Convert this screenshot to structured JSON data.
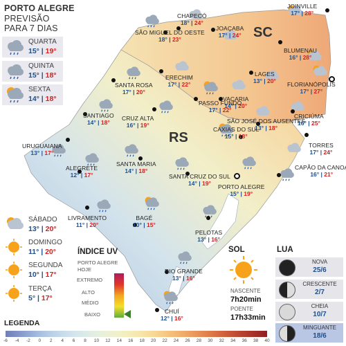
{
  "header": {
    "city": "PORTO ALEGRE",
    "line2": "PREVISÃO",
    "line3": "PARA 7 DIAS"
  },
  "forecast": [
    {
      "day": "QUARTA",
      "min": "15°",
      "max": "19°",
      "icon": "rain-cloud-icon"
    },
    {
      "day": "QUINTA",
      "min": "15°",
      "max": "18°",
      "icon": "rain-cloud-icon"
    },
    {
      "day": "SEXTA",
      "min": "14°",
      "max": "18°",
      "icon": "sun-rain-icon"
    },
    {
      "day": "SÁBADO",
      "min": "13°",
      "max": "20°",
      "icon": "sun-cloud-icon"
    },
    {
      "day": "DOMINGO",
      "min": "11°",
      "max": "20°",
      "icon": "sun-icon"
    },
    {
      "day": "SEGUNDA",
      "min": "10°",
      "max": "17°",
      "icon": "sun-icon"
    },
    {
      "day": "TERÇA",
      "min": "5°",
      "max": "17°",
      "icon": "sun-icon"
    }
  ],
  "states": {
    "sc": "SC",
    "rs": "RS"
  },
  "cities": [
    {
      "name": "JOINVILLE",
      "min": "17°",
      "max": "28°",
      "icon": "sun-cloud-icon"
    },
    {
      "name": "CHAPECÓ",
      "min": "18°",
      "max": "24°",
      "icon": "cloud-icon"
    },
    {
      "name": "SÃO MIGUEL DO OESTE",
      "min": "18°",
      "max": "23°",
      "icon": "rain-cloud-icon"
    },
    {
      "name": "JOAÇABA",
      "min": "17°",
      "max": "24°",
      "icon": "cloud-icon"
    },
    {
      "name": "BLUMENAU",
      "min": "16°",
      "max": "28°",
      "icon": "sun-cloud-icon"
    },
    {
      "name": "LAGES",
      "min": "13°",
      "max": "20°",
      "icon": "cloud-icon"
    },
    {
      "name": "FLORIANÓPOLIS",
      "min": "17°",
      "max": "27°",
      "icon": "sun-cloud-icon"
    },
    {
      "name": "SANTA ROSA",
      "min": "17°",
      "max": "20°",
      "icon": "rain-cloud-icon"
    },
    {
      "name": "ERECHIM",
      "min": "17°",
      "max": "22°",
      "icon": "cloud-icon"
    },
    {
      "name": "VACARIA",
      "min": "14°",
      "max": "20°",
      "icon": "cloud-icon"
    },
    {
      "name": "PASSO FUNDO",
      "min": "17°",
      "max": "22°",
      "icon": "sun-rain-icon"
    },
    {
      "name": "CRICIÚMA",
      "min": "16°",
      "max": "25°",
      "icon": "cloud-icon"
    },
    {
      "name": "SANTIAGO",
      "min": "14°",
      "max": "18°",
      "icon": "rain-cloud-icon"
    },
    {
      "name": "CRUZ ALTA",
      "min": "16°",
      "max": "19°",
      "icon": "rain-cloud-icon"
    },
    {
      "name": "SÃO JOSÉ DOS AUSENTES",
      "min": "13°",
      "max": "18°",
      "icon": "cloud-icon"
    },
    {
      "name": "CAXIAS DO SUL",
      "min": "15°",
      "max": "18°",
      "icon": "sun-rain-icon"
    },
    {
      "name": "TORRES",
      "min": "17°",
      "max": "24°",
      "icon": "cloud-icon"
    },
    {
      "name": "URUGUAIANA",
      "min": "13°",
      "max": "17°",
      "icon": "rain-cloud-icon"
    },
    {
      "name": "SANTA MARIA",
      "min": "14°",
      "max": "18°",
      "icon": "rain-cloud-icon"
    },
    {
      "name": "ALEGRETE",
      "min": "12°",
      "max": "17°",
      "icon": "rain-cloud-icon"
    },
    {
      "name": "SANTA CRUZ DO SUL",
      "min": "14°",
      "max": "19°",
      "icon": "rain-cloud-icon"
    },
    {
      "name": "PORTO ALEGRE",
      "min": "15°",
      "max": "19°",
      "icon": "rain-cloud-icon"
    },
    {
      "name": "CAPÃO DA CANOA",
      "min": "16°",
      "max": "21°",
      "icon": "rain-cloud-icon"
    },
    {
      "name": "LIVRAMENTO",
      "min": "11°",
      "max": "20°",
      "icon": "rain-cloud-icon"
    },
    {
      "name": "BAGÉ",
      "min": "10°",
      "max": "15°",
      "icon": "sun-rain-icon"
    },
    {
      "name": "PELOTAS",
      "min": "13°",
      "max": "16°",
      "icon": "rain-cloud-icon"
    },
    {
      "name": "RIO GRANDE",
      "min": "13°",
      "max": "16°",
      "icon": "rain-cloud-icon"
    },
    {
      "name": "CHUÍ",
      "min": "12°",
      "max": "16°",
      "icon": "sun-rain-icon"
    }
  ],
  "uv": {
    "title": "ÍNDICE UV",
    "subtitle1": "PORTO ALEGRE",
    "subtitle2": "HOJE",
    "levels": [
      "EXTREMO",
      "ALTO",
      "MÉDIO",
      "BAIXO"
    ],
    "current": "BAIXO"
  },
  "sun": {
    "title": "SOL",
    "sunrise_label": "NASCENTE",
    "sunrise": "7h20min",
    "sunset_label": "POENTE",
    "sunset": "17h33min"
  },
  "moon": {
    "title": "LUA",
    "phases": [
      {
        "name": "NOVA",
        "date": "25/6",
        "icon": "new-moon-icon"
      },
      {
        "name": "CRESCENTE",
        "date": "2/7",
        "icon": "waxing-moon-icon"
      },
      {
        "name": "CHEIA",
        "date": "10/7",
        "icon": "full-moon-icon"
      },
      {
        "name": "MINGUANTE",
        "date": "18/6",
        "icon": "waning-moon-icon",
        "current": true
      }
    ]
  },
  "legend": {
    "title": "LEGENDA",
    "ticks": [
      "-6",
      "-4",
      "-2",
      "0",
      "2",
      "4",
      "6",
      "8",
      "10",
      "12",
      "14",
      "16",
      "18",
      "20",
      "22",
      "24",
      "26",
      "28",
      "30",
      "32",
      "34",
      "36",
      "38",
      "40"
    ],
    "colors": [
      "#6f7fb8",
      "#7f93c6",
      "#93a9d4",
      "#a7bfdf",
      "#b8cfe6",
      "#c7dbea",
      "#d3e4ec",
      "#dcebe8",
      "#e4efe0",
      "#ecf1d5",
      "#f1f0c7",
      "#f5ecb8",
      "#f7e4a8",
      "#f8d897",
      "#f6c985",
      "#f3b874",
      "#eea464",
      "#e78f56",
      "#de7a4a",
      "#d2653f",
      "#c45036",
      "#b43e2f",
      "#a22e29",
      "#8f2023"
    ]
  }
}
